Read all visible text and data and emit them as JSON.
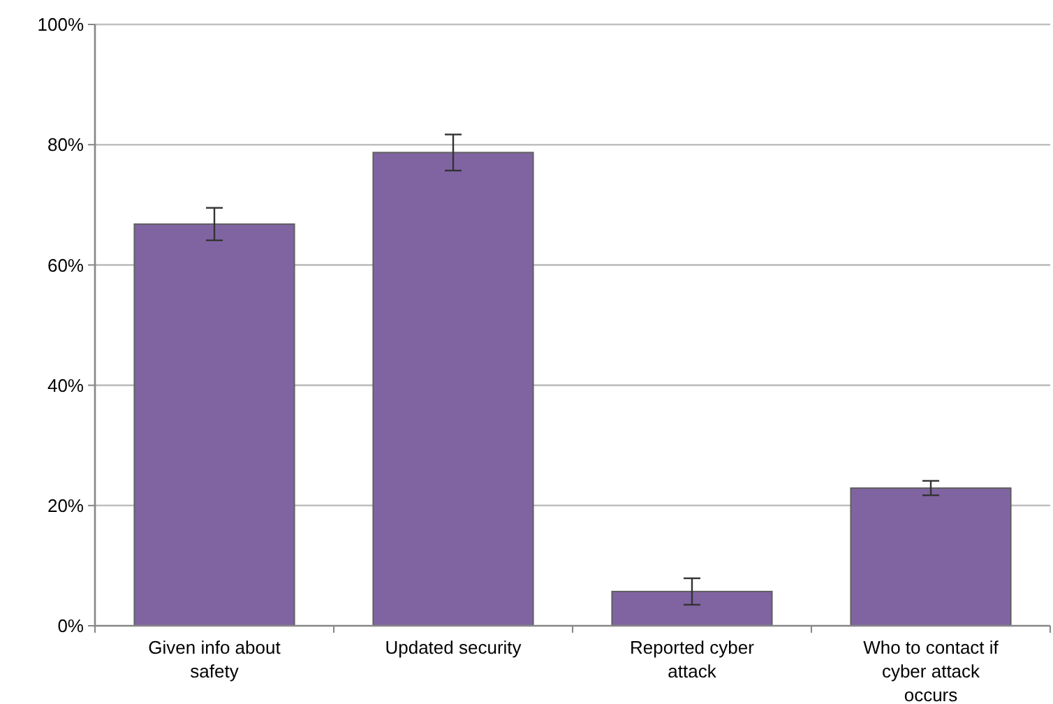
{
  "chart_data": {
    "type": "bar",
    "categories": [
      "Given info about safety",
      "Updated security",
      "Reported cyber attack",
      "Who to contact if cyber attack occurs"
    ],
    "values": [
      66.8,
      78.7,
      5.7,
      22.9
    ],
    "errors": [
      2.7,
      3.0,
      2.2,
      1.2
    ],
    "color": "#8064a2",
    "ylim": [
      0,
      100
    ],
    "yticks": [
      {
        "value": 0,
        "label": "0%"
      },
      {
        "value": 20,
        "label": "20%"
      },
      {
        "value": 40,
        "label": "40%"
      },
      {
        "value": 60,
        "label": "60%"
      },
      {
        "value": 80,
        "label": "80%"
      },
      {
        "value": 100,
        "label": "100%"
      }
    ],
    "grid": "y"
  }
}
